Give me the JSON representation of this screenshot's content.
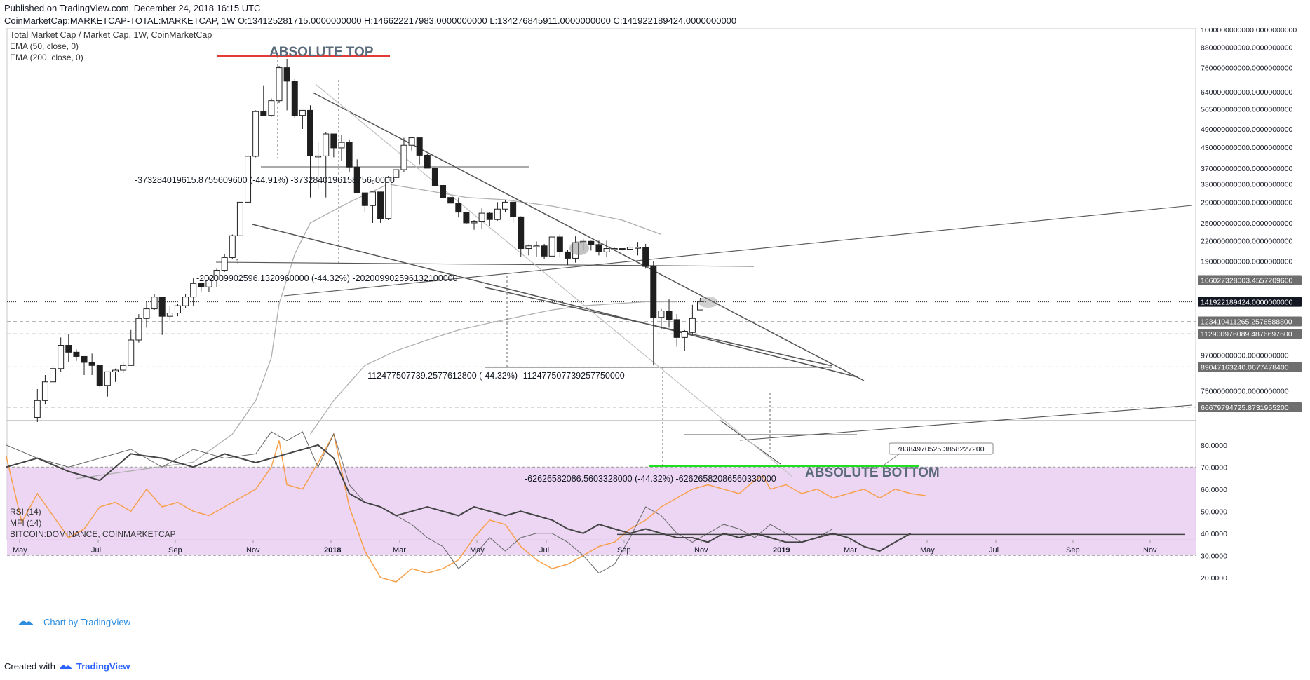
{
  "header": {
    "published": "Published on TradingView.com, December 24, 2018 16:15 UTC",
    "ohlc": "CoinMarketCap:MARKETCAP-TOTAL:MARKETCAP, 1W  O:134125281715.0000000000 H:146622217983.0000000000 L:134276845911.0000000000 C:141922189424.0000000000"
  },
  "footer": {
    "created_prefix": "Created with",
    "brand": "TradingView"
  },
  "legend": {
    "main": [
      "Total Market Cap / Market Cap, 1W, CoinMarketCap",
      "EMA (50, close, 0)",
      "EMA (200, close, 0)"
    ],
    "indicators": [
      "RSI (14)",
      "MFI (14)",
      "BITCOIN:DOMINANCE, COINMARKETCAP"
    ],
    "watermark": "Chart by TradingView"
  },
  "annotations": {
    "top": "ABSOLUTE TOP",
    "bottom": "ABSOLUTE BOTTOM",
    "one": "1",
    "m1": "-373284019615.8755609600 (-44.91%) -3732840196158756₀0000",
    "m2": "-202009902596.1320960000 (-44.32%) -202009902596132100000",
    "m3": "-112477507739.2577612800 (-44.32%) -112477507739257750000",
    "m4": "-62626582086.5603328000 (-44.32%) -62626582086560330000",
    "callout": "78384970525.3858227200"
  },
  "colors": {
    "bullish_body": "#ffffff",
    "bearish_body": "#1e1e1e",
    "top_line": "#e53935",
    "bottom_line": "#1fe01f",
    "trend": "#555555",
    "ema": "#b0b0b0",
    "rsi_band": "#e6c8f0",
    "rsi_line": "#f7a04b",
    "dominance": "#444444",
    "mfi": "#666666"
  },
  "chart_data": {
    "type": "candlestick",
    "title": "Total Market Cap / Market Cap, 1W, CoinMarketCap",
    "scale": "log",
    "y_tick_labels": [
      "1000000000000.0000000000",
      "880000000000.0000000000",
      "760000000000.0000000000",
      "640000000000.0000000000",
      "565000000000.0000000000",
      "490000000000.0000000000",
      "430000000000.0000000000",
      "370000000000.0000000000",
      "330000000000.0000000000",
      "290000000000.0000000000",
      "250000000000.0000000000",
      "220000000000.0000000000",
      "190000000000.0000000000",
      "97000000000.0000000000",
      "75000000000.0000000000"
    ],
    "price_tags": [
      {
        "label": "166027328003.4557209600",
        "dark": false
      },
      {
        "label": "141922189424.0000000000",
        "dark": true
      },
      {
        "label": "123410411265.2576588800",
        "dark": false
      },
      {
        "label": "112900976089.4876697600",
        "dark": false
      },
      {
        "label": "89047163240.0677478400",
        "dark": false
      },
      {
        "label": "66679794725.8731955200",
        "dark": false
      }
    ],
    "x_tick_labels": [
      "May",
      "Jul",
      "Sep",
      "Nov",
      "2018",
      "Mar",
      "May",
      "Jul",
      "Sep",
      "Nov",
      "2019",
      "Mar",
      "May",
      "Jul",
      "Sep",
      "Nov"
    ],
    "candles_ohlc": [
      [
        62,
        76,
        60,
        70
      ],
      [
        70,
        84,
        68,
        80
      ],
      [
        80,
        90,
        80,
        88
      ],
      [
        88,
        110,
        86,
        104
      ],
      [
        104,
        113,
        92,
        99
      ],
      [
        99,
        101,
        93,
        96
      ],
      [
        96,
        94,
        84,
        92
      ],
      [
        92,
        98,
        84,
        90
      ],
      [
        90,
        88,
        77,
        78
      ],
      [
        78,
        86,
        72,
        86
      ],
      [
        86,
        88,
        80,
        87
      ],
      [
        87,
        92,
        85,
        90
      ],
      [
        90,
        116,
        90,
        108
      ],
      [
        108,
        130,
        106,
        126
      ],
      [
        126,
        143,
        118,
        135
      ],
      [
        135,
        150,
        134,
        147
      ],
      [
        147,
        130,
        112,
        128
      ],
      [
        128,
        138,
        124,
        131
      ],
      [
        131,
        140,
        128,
        138
      ],
      [
        138,
        150,
        136,
        147
      ],
      [
        147,
        168,
        138,
        162
      ],
      [
        162,
        162,
        153,
        158
      ],
      [
        158,
        170,
        152,
        166
      ],
      [
        166,
        180,
        158,
        178
      ],
      [
        178,
        200,
        176,
        195
      ],
      [
        195,
        230,
        193,
        228
      ],
      [
        228,
        280,
        228,
        290
      ],
      [
        290,
        410,
        290,
        403
      ],
      [
        403,
        560,
        400,
        555
      ],
      [
        555,
        670,
        540,
        540
      ],
      [
        540,
        610,
        535,
        600
      ],
      [
        600,
        770,
        590,
        760
      ],
      [
        760,
        810,
        560,
        690
      ],
      [
        690,
        700,
        530,
        540
      ],
      [
        540,
        560,
        490,
        560
      ],
      [
        560,
        580,
        300,
        404
      ],
      [
        404,
        446,
        318,
        404
      ],
      [
        404,
        480,
        300,
        473
      ],
      [
        473,
        460,
        400,
        428
      ],
      [
        428,
        470,
        390,
        445
      ],
      [
        445,
        455,
        360,
        373
      ],
      [
        373,
        394,
        310,
        310
      ],
      [
        310,
        300,
        270,
        283
      ],
      [
        283,
        310,
        250,
        312
      ],
      [
        312,
        280,
        250,
        258
      ],
      [
        258,
        350,
        255,
        346
      ],
      [
        346,
        350,
        383,
        366
      ],
      [
        366,
        460,
        360,
        436
      ],
      [
        436,
        450,
        420,
        460
      ],
      [
        460,
        450,
        380,
        406
      ],
      [
        406,
        410,
        370,
        370
      ],
      [
        370,
        376,
        330,
        327
      ],
      [
        327,
        335,
        310,
        300
      ],
      [
        300,
        300,
        300,
        288
      ],
      [
        288,
        300,
        260,
        270
      ],
      [
        270,
        270,
        248,
        250
      ],
      [
        250,
        255,
        238,
        253
      ],
      [
        253,
        278,
        240,
        268
      ],
      [
        268,
        270,
        245,
        256
      ],
      [
        256,
        290,
        254,
        276
      ],
      [
        276,
        295,
        270,
        290
      ],
      [
        290,
        290,
        250,
        261
      ],
      [
        261,
        262,
        196,
        208
      ],
      [
        208,
        214,
        198,
        212
      ],
      [
        212,
        219,
        196,
        212
      ],
      [
        212,
        215,
        193,
        197
      ],
      [
        197,
        225,
        197,
        226
      ],
      [
        226,
        230,
        195,
        203
      ],
      [
        203,
        206,
        185,
        194
      ],
      [
        194,
        227,
        188,
        217
      ],
      [
        217,
        223,
        205,
        219
      ],
      [
        219,
        220,
        205,
        214
      ],
      [
        214,
        220,
        198,
        203
      ],
      [
        203,
        220,
        196,
        208
      ],
      [
        208,
        209,
        207,
        208
      ],
      [
        208,
        208,
        206,
        207
      ],
      [
        207,
        214,
        206,
        210
      ],
      [
        210,
        218,
        198,
        210
      ],
      [
        210,
        215,
        180,
        183
      ],
      [
        183,
        190,
        90,
        127
      ],
      [
        127,
        135,
        117,
        133
      ],
      [
        133,
        145,
        118,
        125
      ],
      [
        125,
        130,
        103,
        110
      ],
      [
        110,
        116,
        100,
        115
      ],
      [
        114,
        139,
        112,
        126
      ],
      [
        134,
        146,
        134,
        142
      ]
    ]
  }
}
